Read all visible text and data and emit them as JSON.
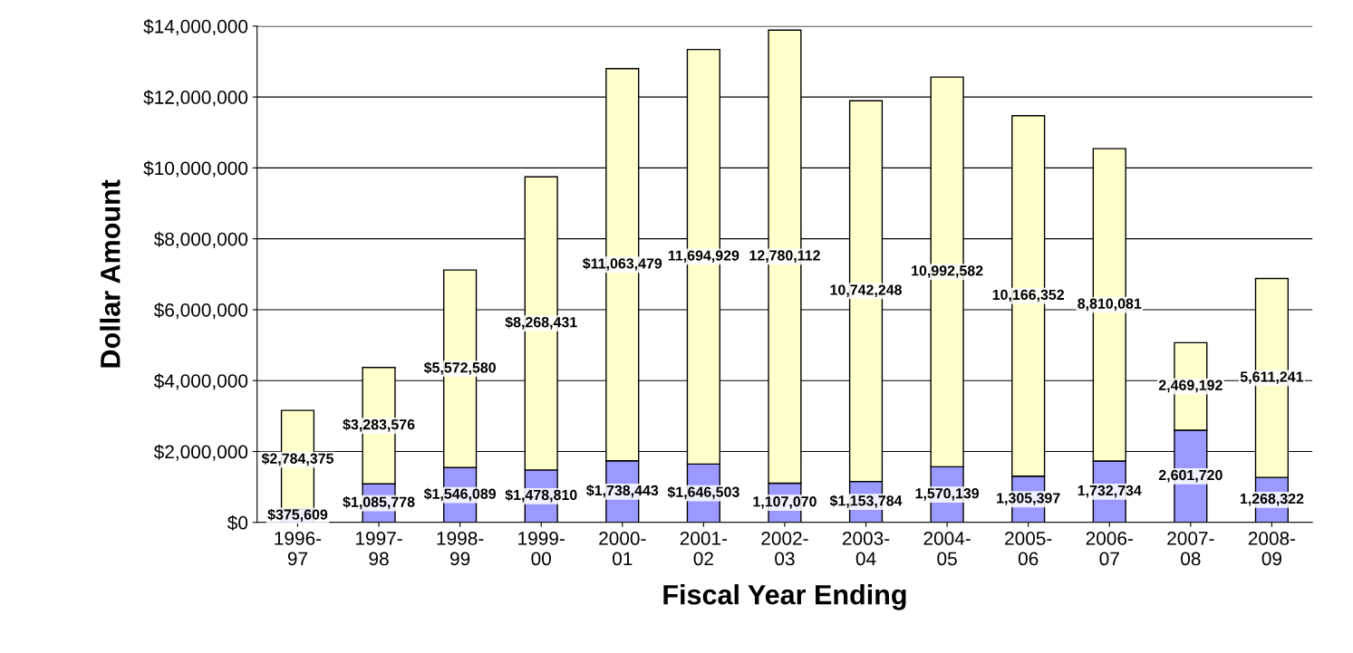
{
  "chart_data": {
    "type": "bar",
    "stacked": true,
    "xlabel": "Fiscal Year Ending",
    "ylabel": "Dollar Amount",
    "categories": [
      "1996-97",
      "1997-98",
      "1998-99",
      "1999-00",
      "2000-01",
      "2001-02",
      "2002-03",
      "2003-04",
      "2004-05",
      "2005-06",
      "2006-07",
      "2007-08",
      "2008-09"
    ],
    "series": [
      {
        "color": "#9999ff",
        "values": [
          375609,
          1085778,
          1546089,
          1478810,
          1738443,
          1646503,
          1107070,
          1153784,
          1570139,
          1305397,
          1732734,
          2601720,
          1268322
        ],
        "value_labels": [
          "$375,609",
          "$1,085,778",
          "$1,546,089",
          "$1,478,810",
          "$1,738,443",
          "$1,646,503",
          "1,107,070",
          "$1,153,784",
          "1,570,139",
          "1,305,397",
          "1,732,734",
          "2,601,720",
          "1,268,322"
        ]
      },
      {
        "color": "#ffffcc",
        "values": [
          2784375,
          3283576,
          5572580,
          8268431,
          11063479,
          11694929,
          12780112,
          10742248,
          10992582,
          10166352,
          8810081,
          2469192,
          5611241
        ],
        "value_labels": [
          "$2,784,375",
          "$3,283,576",
          "$5,572,580",
          "$8,268,431",
          "$11,063,479",
          "11,694,929",
          "12,780,112",
          "10,742,248",
          "10,992,582",
          "10,166,352",
          "8,810,081",
          "2,469,192",
          "5,611,241"
        ]
      }
    ],
    "ylim": [
      0,
      14000000
    ],
    "yticks": [
      {
        "value": 0,
        "label": "$0"
      },
      {
        "value": 2000000,
        "label": "$2,000,000"
      },
      {
        "value": 4000000,
        "label": "$4,000,000"
      },
      {
        "value": 6000000,
        "label": "$6,000,000"
      },
      {
        "value": 8000000,
        "label": "$8,000,000"
      },
      {
        "value": 10000000,
        "label": "$10,000,000"
      },
      {
        "value": 12000000,
        "label": "$12,000,000"
      },
      {
        "value": 14000000,
        "label": "$14,000,000"
      }
    ],
    "grid": "y",
    "legend": false
  }
}
